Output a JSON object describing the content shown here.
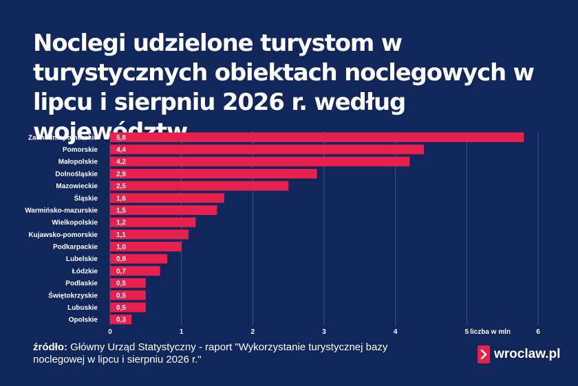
{
  "title": "Noclegi udzielone turystom w turystycznych obiektach noclegowych w lipcu i sierpniu 2026 r. według województw",
  "source": {
    "prefix": "źródło:",
    "text": "Główny Urząd Statystyczny - raport \"Wykorzystanie turystycznej bazy noclegowej w lipcu i sierpniu 2026 r.\""
  },
  "logo": {
    "text": "wroclaw.pl",
    "icon": "chevron-right-icon"
  },
  "colors": {
    "background": "#11275c",
    "bar": "#e8204d",
    "text": "#ffffff"
  },
  "chart_data": {
    "type": "bar",
    "orientation": "horizontal",
    "categories": [
      "Zachodniopomorskie",
      "Pomorskie",
      "Małopolskie",
      "Dolnośląskie",
      "Mazowieckie",
      "Śląskie",
      "Warmińsko-mazurskie",
      "Wielkopolskie",
      "Kujawsko-pomorskie",
      "Podkarpackie",
      "Lubelskie",
      "Łódzkie",
      "Podlaskie",
      "Świętokrzyskie",
      "Lubuskie",
      "Opolskie"
    ],
    "values": [
      5.8,
      4.4,
      4.2,
      2.9,
      2.5,
      1.6,
      1.5,
      1.2,
      1.1,
      1.0,
      0.8,
      0.7,
      0.5,
      0.5,
      0.5,
      0.3
    ],
    "value_labels": [
      "5,8",
      "4,4",
      "4,2",
      "2,9",
      "2,5",
      "1,6",
      "1,5",
      "1,2",
      "1,1",
      "1,0",
      "0,8",
      "0,7",
      "0,5",
      "0,5",
      "0,5",
      "0,3"
    ],
    "xticks": [
      "0",
      "1",
      "2",
      "3",
      "4",
      "5",
      "6"
    ],
    "xlim": [
      0,
      6
    ],
    "unit_label": "liczba w mln",
    "grid": true
  }
}
